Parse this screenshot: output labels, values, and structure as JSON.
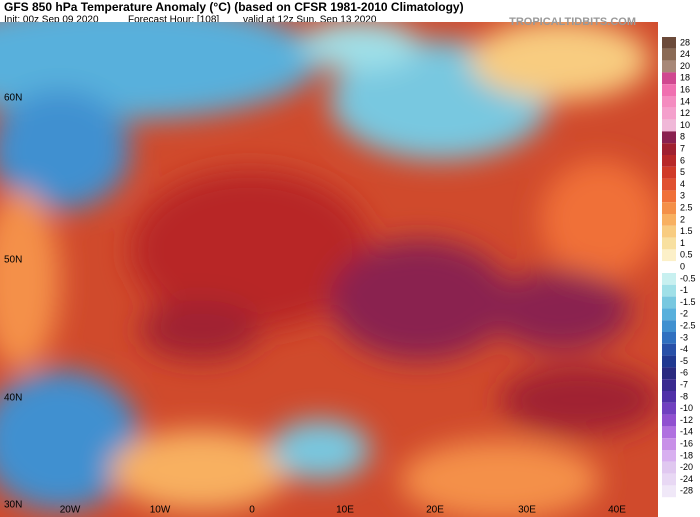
{
  "header": {
    "title": "GFS 850 hPa Temperature Anomaly (°C) (based on CFSR 1981-2010 Climatology)",
    "init": "Init: 00z Sep 09 2020",
    "forecast_hour": "Forecast Hour: [108]",
    "valid": "valid at 12z Sun, Sep 13 2020",
    "brand": "TROPICALTIDBITS.COM"
  },
  "map": {
    "lat_labels": [
      "60N",
      "50N",
      "40N",
      "30N"
    ],
    "lon_labels": [
      "20W",
      "10W",
      "0",
      "10E",
      "20E",
      "30E",
      "40E"
    ]
  },
  "colorbar": [
    {
      "label": "28",
      "color": "#6b4a3a"
    },
    {
      "label": "24",
      "color": "#8a6a55"
    },
    {
      "label": "20",
      "color": "#a88878"
    },
    {
      "label": "18",
      "color": "#d04890"
    },
    {
      "label": "16",
      "color": "#f070b0"
    },
    {
      "label": "14",
      "color": "#f48cc0"
    },
    {
      "label": "12",
      "color": "#f4a0cc"
    },
    {
      "label": "10",
      "color": "#f0b8d8"
    },
    {
      "label": "8",
      "color": "#8a2050"
    },
    {
      "label": "7",
      "color": "#a02030"
    },
    {
      "label": "6",
      "color": "#b82828"
    },
    {
      "label": "5",
      "color": "#d03a28"
    },
    {
      "label": "4",
      "color": "#e05030"
    },
    {
      "label": "3",
      "color": "#f07038"
    },
    {
      "label": "2.5",
      "color": "#f49048"
    },
    {
      "label": "2",
      "color": "#f8b060"
    },
    {
      "label": "1.5",
      "color": "#f8cc80"
    },
    {
      "label": "1",
      "color": "#f8e0a0"
    },
    {
      "label": "0.5",
      "color": "#fcf0c8"
    },
    {
      "label": "0",
      "color": "#ffffff"
    },
    {
      "label": "-0.5",
      "color": "#c8f0f0"
    },
    {
      "label": "-1",
      "color": "#a0e0e8"
    },
    {
      "label": "-1.5",
      "color": "#78c8e0"
    },
    {
      "label": "-2",
      "color": "#58b0dc"
    },
    {
      "label": "-2.5",
      "color": "#4090d0"
    },
    {
      "label": "-3",
      "color": "#3070c0"
    },
    {
      "label": "-4",
      "color": "#2850a8"
    },
    {
      "label": "-5",
      "color": "#203890"
    },
    {
      "label": "-6",
      "color": "#2a2a80"
    },
    {
      "label": "-7",
      "color": "#3a2a90"
    },
    {
      "label": "-8",
      "color": "#5030a8"
    },
    {
      "label": "-10",
      "color": "#7040c0"
    },
    {
      "label": "-12",
      "color": "#9050d0"
    },
    {
      "label": "-14",
      "color": "#b070e0"
    },
    {
      "label": "-16",
      "color": "#c890e8"
    },
    {
      "label": "-18",
      "color": "#d8b0f0"
    },
    {
      "label": "-20",
      "color": "#e0c8f0"
    },
    {
      "label": "-24",
      "color": "#e8d8f4"
    },
    {
      "label": "-28",
      "color": "#f0e8f8"
    }
  ]
}
